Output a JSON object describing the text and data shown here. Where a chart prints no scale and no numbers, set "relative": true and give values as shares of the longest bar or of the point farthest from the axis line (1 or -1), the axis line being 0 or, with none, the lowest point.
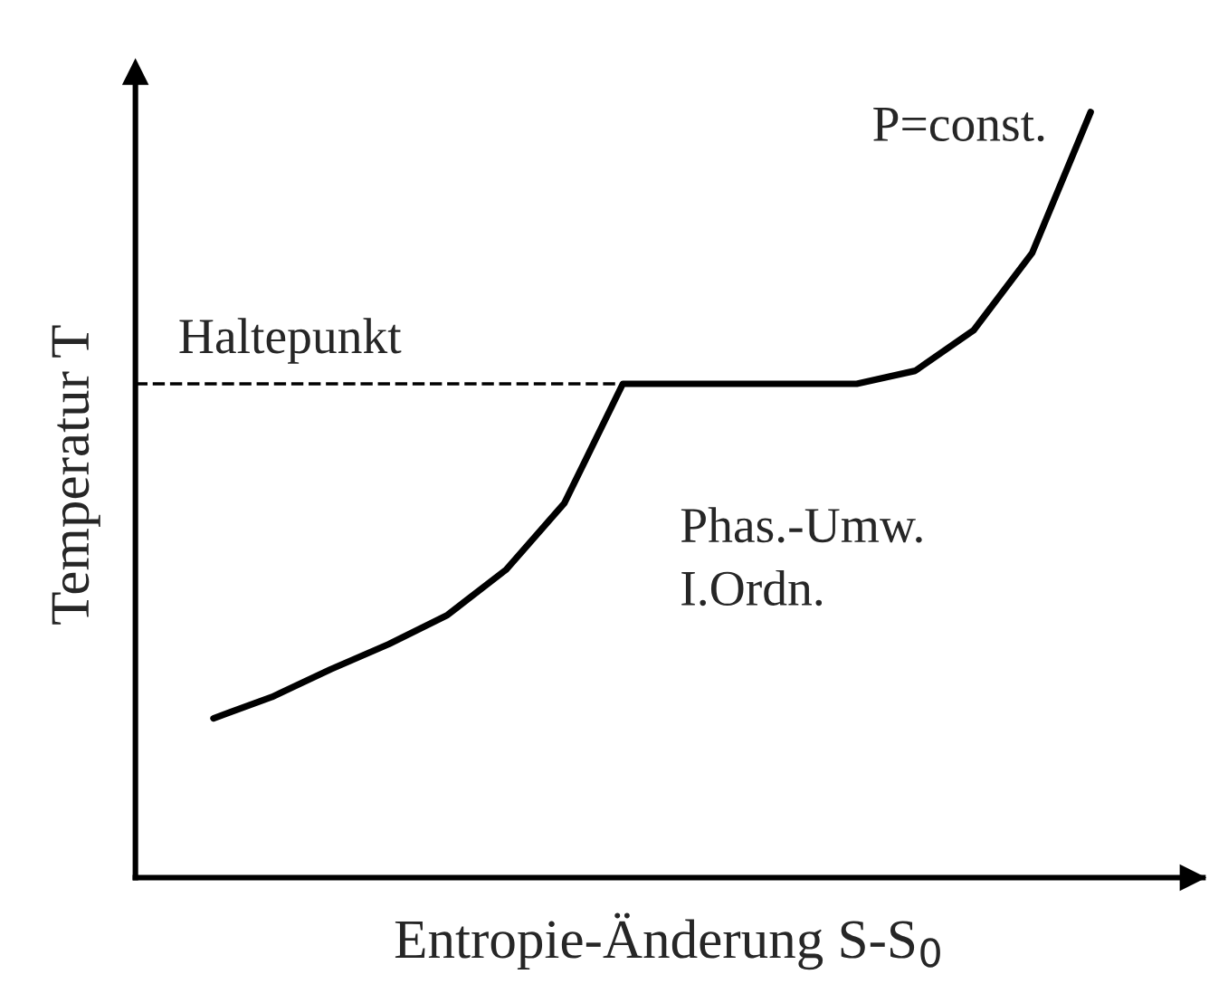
{
  "chart_data": {
    "type": "line",
    "relative": true,
    "xlabel": "Entropie-Änderung S-S$_{0}$",
    "ylabel": "Temperatur T",
    "categories": [
      null,
      null,
      null,
      null,
      null,
      null,
      null,
      null,
      null,
      null,
      null,
      null,
      null,
      null,
      null,
      null
    ],
    "series": [
      {
        "color": "#000000",
        "values": [
          0.208,
          0.236,
          0.272,
          0.305,
          0.343,
          0.402,
          0.489,
          0.645,
          0.645,
          0.645,
          0.645,
          0.645,
          0.662,
          0.715,
          0.816,
          1.0
        ]
      }
    ],
    "ref_lines": [
      {
        "axis": "y",
        "value": 0.645,
        "label": "Haltepunkt",
        "line_style": "dashed",
        "color": "#000000"
      }
    ],
    "annotations": [
      "P=const.",
      "Phas.-Umw.\nI.Ordn."
    ],
    "marker": "none",
    "line_style": "solid"
  }
}
